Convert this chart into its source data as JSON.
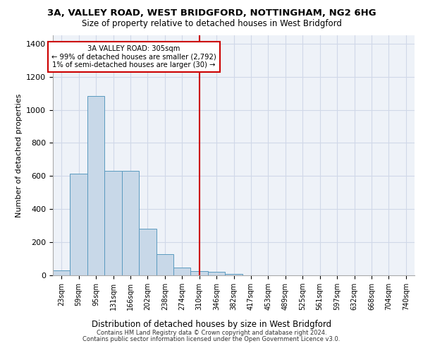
{
  "title_line1": "3A, VALLEY ROAD, WEST BRIDGFORD, NOTTINGHAM, NG2 6HG",
  "title_line2": "Size of property relative to detached houses in West Bridgford",
  "xlabel": "Distribution of detached houses by size in West Bridgford",
  "ylabel": "Number of detached properties",
  "categories": [
    "23sqm",
    "59sqm",
    "95sqm",
    "131sqm",
    "166sqm",
    "202sqm",
    "238sqm",
    "274sqm",
    "310sqm",
    "346sqm",
    "382sqm",
    "417sqm",
    "453sqm",
    "489sqm",
    "525sqm",
    "561sqm",
    "597sqm",
    "632sqm",
    "668sqm",
    "704sqm",
    "740sqm"
  ],
  "values": [
    30,
    615,
    1085,
    630,
    630,
    280,
    130,
    45,
    25,
    20,
    10,
    0,
    0,
    0,
    0,
    0,
    0,
    0,
    0,
    0,
    0
  ],
  "bar_color": "#c8d8e8",
  "bar_edge_color": "#5a9abf",
  "grid_color": "#d0d8e8",
  "background_color": "#eef2f8",
  "vline_x_index": 8,
  "vline_color": "#cc0000",
  "annotation_line1": "3A VALLEY ROAD: 305sqm",
  "annotation_line2": "← 99% of detached houses are smaller (2,792)",
  "annotation_line3": "1% of semi-detached houses are larger (30) →",
  "annotation_box_color": "#cc0000",
  "ylim": [
    0,
    1450
  ],
  "yticks": [
    0,
    200,
    400,
    600,
    800,
    1000,
    1200,
    1400
  ],
  "footer_line1": "Contains HM Land Registry data © Crown copyright and database right 2024.",
  "footer_line2": "Contains public sector information licensed under the Open Government Licence v3.0."
}
